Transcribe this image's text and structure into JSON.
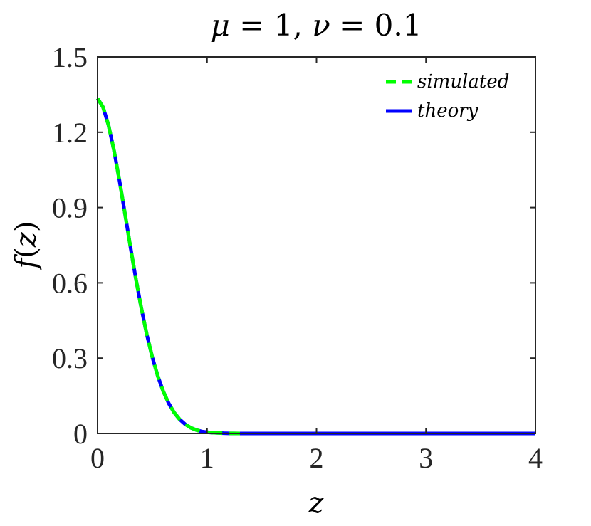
{
  "chart_data": {
    "type": "line",
    "title": "μ = 1, ν = 0.1",
    "title_parts": {
      "mu_symbol": "μ",
      "mu_eq": " = 1, ",
      "nu_symbol": "ν",
      "nu_eq": " = 0.1"
    },
    "xlabel": "z",
    "ylabel_parts": {
      "func": "f",
      "open": "(",
      "var": "z",
      "close": ")"
    },
    "xlim": [
      0,
      4
    ],
    "ylim": [
      0,
      1.5
    ],
    "xticks": [
      0,
      1,
      2,
      3,
      4
    ],
    "xtick_labels": [
      "0",
      "1",
      "2",
      "3",
      "4"
    ],
    "yticks": [
      0,
      0.3,
      0.6,
      0.9,
      1.2,
      1.5
    ],
    "ytick_labels": [
      "0",
      "0.3",
      "0.6",
      "0.9",
      "1.2",
      "1.5"
    ],
    "grid": false,
    "legend_position": "top-right",
    "series": [
      {
        "name": "simulated",
        "color": "#00ff00",
        "style": "dashed",
        "x": [
          0,
          0.05,
          0.1,
          0.15,
          0.2,
          0.25,
          0.3,
          0.35,
          0.4,
          0.45,
          0.5,
          0.55,
          0.6,
          0.65,
          0.7,
          0.75,
          0.8,
          0.85,
          0.9,
          0.95,
          1.0,
          1.05,
          1.1,
          1.15,
          1.2,
          1.25,
          1.3
        ],
        "y": [
          1.335,
          1.3,
          1.228,
          1.128,
          1.008,
          0.877,
          0.744,
          0.616,
          0.499,
          0.394,
          0.304,
          0.229,
          0.168,
          0.12,
          0.083,
          0.056,
          0.037,
          0.023,
          0.014,
          0.008,
          0.005,
          0.003,
          0.002,
          0.001,
          0.0005,
          0.0002,
          0.0001
        ]
      },
      {
        "name": "theory",
        "color": "#0000ff",
        "style": "solid",
        "x": [
          0,
          0.05,
          0.1,
          0.15,
          0.2,
          0.25,
          0.3,
          0.35,
          0.4,
          0.45,
          0.5,
          0.55,
          0.6,
          0.65,
          0.7,
          0.75,
          0.8,
          0.85,
          0.9,
          0.95,
          1.0,
          1.05,
          1.1,
          1.15,
          1.2,
          1.3,
          1.5,
          2.0,
          2.5,
          3.0,
          3.5,
          4.0
        ],
        "y": [
          1.335,
          1.3,
          1.228,
          1.128,
          1.008,
          0.877,
          0.744,
          0.616,
          0.499,
          0.394,
          0.304,
          0.229,
          0.168,
          0.12,
          0.083,
          0.056,
          0.037,
          0.023,
          0.014,
          0.008,
          0.005,
          0.003,
          0.002,
          0.001,
          0.0005,
          0.0001,
          0,
          0,
          0,
          0,
          0,
          0
        ]
      }
    ]
  }
}
